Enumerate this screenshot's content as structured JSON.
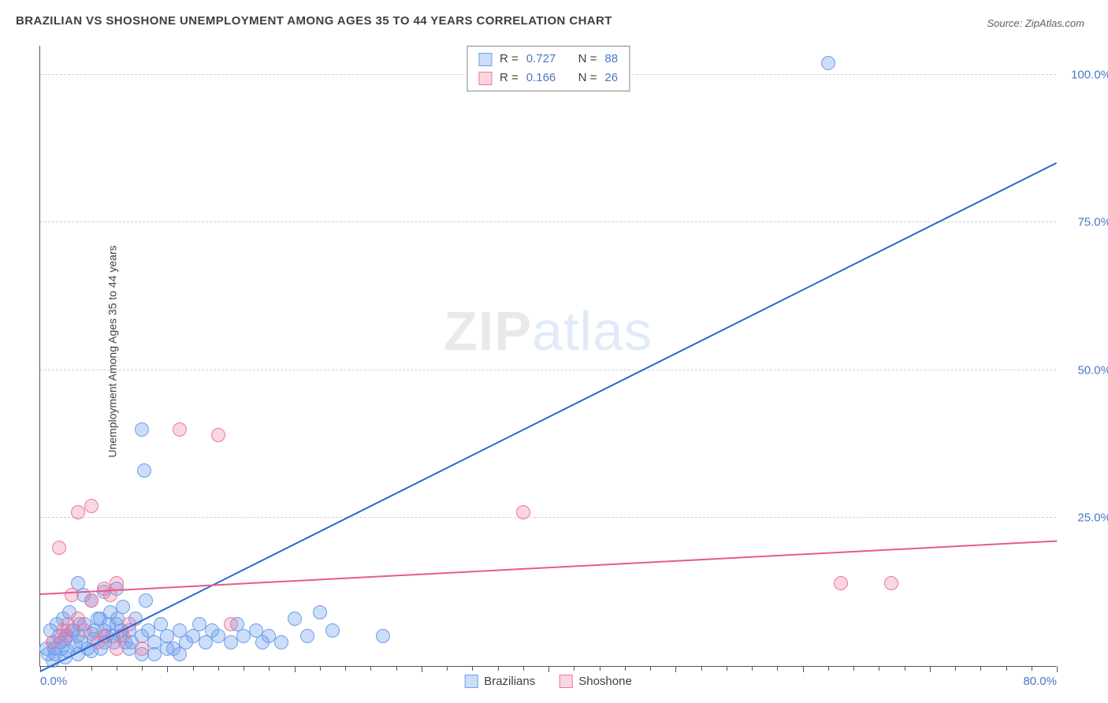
{
  "title": "BRAZILIAN VS SHOSHONE UNEMPLOYMENT AMONG AGES 35 TO 44 YEARS CORRELATION CHART",
  "source_prefix": "Source: ",
  "source": "ZipAtlas.com",
  "ylabel": "Unemployment Among Ages 35 to 44 years",
  "watermark_a": "ZIP",
  "watermark_b": "atlas",
  "chart": {
    "type": "scatter",
    "xlim": [
      0,
      80
    ],
    "ylim": [
      0,
      105
    ],
    "x_ticks_major": [
      0,
      10,
      20,
      30,
      40,
      50,
      60,
      70,
      80
    ],
    "x_ticks_minor_step": 2,
    "x_tick_labels": [
      {
        "x": 0,
        "label": "0.0%"
      },
      {
        "x": 80,
        "label": "80.0%"
      }
    ],
    "y_gridlines": [
      25,
      50,
      75,
      100
    ],
    "y_tick_labels": [
      {
        "y": 25,
        "label": "25.0%"
      },
      {
        "y": 50,
        "label": "50.0%"
      },
      {
        "y": 75,
        "label": "75.0%"
      },
      {
        "y": 100,
        "label": "100.0%"
      }
    ],
    "series": [
      {
        "name": "Brazilians",
        "R": "0.727",
        "N": "88",
        "marker_fill": "rgba(109,158,235,0.35)",
        "marker_stroke": "#6d9eeb",
        "marker_radius": 8,
        "line_color": "#2a66d1",
        "line_width": 2,
        "trend": {
          "x1": 0,
          "y1": -1,
          "x2": 80,
          "y2": 85
        },
        "points": [
          [
            0.5,
            3
          ],
          [
            1,
            4
          ],
          [
            1.2,
            2
          ],
          [
            1.5,
            5
          ],
          [
            1.7,
            3
          ],
          [
            2,
            4.5
          ],
          [
            2.2,
            2.5
          ],
          [
            2.5,
            6
          ],
          [
            2.8,
            3.5
          ],
          [
            3,
            5
          ],
          [
            3.2,
            4
          ],
          [
            3.5,
            7
          ],
          [
            3.7,
            3
          ],
          [
            4,
            5.5
          ],
          [
            4.2,
            4.5
          ],
          [
            4.5,
            8
          ],
          [
            4.8,
            3
          ],
          [
            5,
            6
          ],
          [
            5.2,
            5
          ],
          [
            5.5,
            9
          ],
          [
            5.8,
            4
          ],
          [
            6,
            7
          ],
          [
            6.3,
            5
          ],
          [
            6.5,
            10
          ],
          [
            7,
            6
          ],
          [
            7.2,
            4
          ],
          [
            7.5,
            8
          ],
          [
            8,
            5
          ],
          [
            8.3,
            11
          ],
          [
            8.5,
            6
          ],
          [
            9,
            4
          ],
          [
            9.5,
            7
          ],
          [
            10,
            5
          ],
          [
            10.5,
            3
          ],
          [
            11,
            6
          ],
          [
            11.5,
            4
          ],
          [
            8,
            40
          ],
          [
            8.2,
            33
          ],
          [
            12,
            5
          ],
          [
            12.5,
            7
          ],
          [
            13,
            4
          ],
          [
            13.5,
            6
          ],
          [
            14,
            5
          ],
          [
            15,
            4
          ],
          [
            15.5,
            7
          ],
          [
            16,
            5
          ],
          [
            17,
            6
          ],
          [
            17.5,
            4
          ],
          [
            18,
            5
          ],
          [
            19,
            4
          ],
          [
            20,
            8
          ],
          [
            21,
            5
          ],
          [
            22,
            9
          ],
          [
            23,
            6
          ],
          [
            27,
            5
          ],
          [
            62,
            102
          ],
          [
            1,
            1
          ],
          [
            2,
            1.5
          ],
          [
            3,
            2
          ],
          [
            4,
            2.5
          ],
          [
            0.8,
            6
          ],
          [
            1.3,
            7
          ],
          [
            1.8,
            8
          ],
          [
            2.3,
            9
          ],
          [
            0.6,
            2
          ],
          [
            1.1,
            3
          ],
          [
            1.6,
            4
          ],
          [
            2.1,
            5
          ],
          [
            2.6,
            6
          ],
          [
            3.1,
            7
          ],
          [
            5,
            12.5
          ],
          [
            3,
            14
          ],
          [
            6,
            13
          ],
          [
            4,
            11
          ],
          [
            3.4,
            12
          ],
          [
            9,
            2
          ],
          [
            10,
            3
          ],
          [
            11,
            2
          ],
          [
            7,
            3
          ],
          [
            8,
            2
          ],
          [
            4.3,
            6
          ],
          [
            4.7,
            8
          ],
          [
            5.1,
            4
          ],
          [
            5.4,
            7
          ],
          [
            5.7,
            5
          ],
          [
            6.1,
            8
          ],
          [
            6.4,
            6
          ],
          [
            6.7,
            4
          ]
        ]
      },
      {
        "name": "Shoshone",
        "R": "0.166",
        "N": "26",
        "marker_fill": "rgba(234,120,160,0.30)",
        "marker_stroke": "#ea78a0",
        "marker_radius": 8,
        "line_color": "#e75a8d",
        "line_width": 2,
        "trend": {
          "x1": 0,
          "y1": 12,
          "x2": 80,
          "y2": 21
        },
        "points": [
          [
            1,
            4
          ],
          [
            1.5,
            20
          ],
          [
            2,
            5
          ],
          [
            2.5,
            12
          ],
          [
            3,
            26
          ],
          [
            3.5,
            6
          ],
          [
            4,
            27
          ],
          [
            5,
            13
          ],
          [
            5.5,
            12
          ],
          [
            6,
            14
          ],
          [
            6.5,
            5
          ],
          [
            7,
            7
          ],
          [
            8,
            3
          ],
          [
            11,
            40
          ],
          [
            14,
            39
          ],
          [
            15,
            7
          ],
          [
            38,
            26
          ],
          [
            63,
            14
          ],
          [
            67,
            14
          ],
          [
            3,
            8
          ],
          [
            4.5,
            4
          ],
          [
            2.2,
            7
          ],
          [
            1.8,
            6
          ],
          [
            4,
            11
          ],
          [
            5,
            5
          ],
          [
            6,
            3
          ]
        ]
      }
    ],
    "legend_top_labels": {
      "r": "R =",
      "n": "N ="
    },
    "background_color": "#ffffff",
    "grid_color": "#d0d0d0",
    "axis_color": "#555555",
    "tick_label_color": "#4a78c8",
    "label_fontsize": 14,
    "tick_fontsize": 15
  }
}
